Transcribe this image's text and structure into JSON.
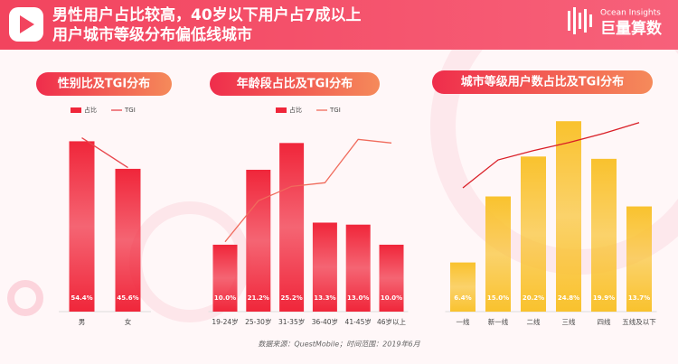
{
  "header": {
    "title": [
      "男性用户占比较高，40岁以下用户占7成以上",
      "用户城市等级分布偏低线城市"
    ],
    "logo_en": "Ocean Insights",
    "logo_zh": "巨量算数"
  },
  "chart_data": [
    {
      "type": "bar",
      "title": "性别比及TGI分布",
      "legend": true,
      "categories": [
        "男",
        "女"
      ],
      "ylim": [
        0,
        60
      ],
      "y2lim": [
        0,
        120
      ],
      "series": [
        {
          "name": "占比",
          "color": "#f0263a",
          "values": [
            54.4,
            45.6
          ],
          "value_labels": [
            "54.4%",
            "45.6%"
          ]
        },
        {
          "name": "TGI",
          "type": "line",
          "axis": "y2",
          "color": "#e8454b",
          "values": [
            111,
            92
          ]
        }
      ]
    },
    {
      "type": "bar",
      "title": "年龄段占比及TGI分布",
      "legend": true,
      "categories": [
        "19-24岁",
        "25-30岁",
        "31-35岁",
        "36-40岁",
        "41-45岁",
        "46岁以上"
      ],
      "ylim": [
        0,
        27
      ],
      "y2lim": [
        0,
        150
      ],
      "series": [
        {
          "name": "占比",
          "color": "#f0263a",
          "values": [
            10.0,
            21.2,
            25.2,
            13.3,
            13.0,
            10.0
          ],
          "value_labels": [
            "10.0%",
            "21.2%",
            "25.2%",
            "13.3%",
            "13.0%",
            "10.0%"
          ]
        },
        {
          "name": "TGI",
          "type": "line",
          "axis": "y2",
          "color": "#f06b5c",
          "values": [
            58,
            92,
            104,
            107,
            143,
            140
          ]
        }
      ]
    },
    {
      "type": "bar",
      "title": "城市等级用户数占比及TGI分布",
      "legend": false,
      "categories": [
        "一线",
        "新一线",
        "二线",
        "三线",
        "四线",
        "五线及以下"
      ],
      "ylim": [
        0,
        26
      ],
      "y2lim": [
        0,
        150
      ],
      "series": [
        {
          "color": "#f9c22e",
          "values": [
            6.4,
            15.0,
            20.2,
            24.8,
            19.9,
            13.7
          ],
          "value_labels": [
            "6.4%",
            "15.0%",
            "20.2%",
            "24.8%",
            "19.9%",
            "13.7%"
          ]
        },
        {
          "type": "line",
          "axis": "y2",
          "color": "#d91e26",
          "values": [
            93,
            114,
            121,
            127,
            134,
            142
          ]
        }
      ]
    }
  ],
  "source": "数据来源：QuestMobile；时间范围：2019年6月"
}
